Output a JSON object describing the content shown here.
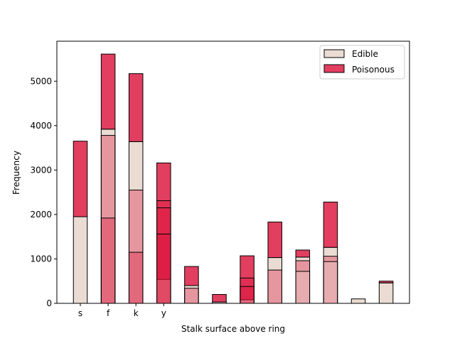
{
  "chart_data": {
    "type": "bar",
    "stacked": true,
    "xlabel": "Stalk surface above ring",
    "ylabel": "Frequency",
    "ylim": [
      0,
      5900
    ],
    "yticks": [
      0,
      1000,
      2000,
      3000,
      4000,
      5000
    ],
    "categories": [
      "s",
      "f",
      "k",
      "y",
      "",
      "",
      "",
      "",
      "",
      "",
      "",
      ""
    ],
    "tick_labels": [
      "s",
      "f",
      "k",
      "y"
    ],
    "legend": {
      "placement": "top-right",
      "entries": [
        "Edible",
        "Poisonous"
      ]
    },
    "colors": {
      "Edible": "#e8d8ce",
      "Poisonous": "#dc143c",
      "Edible_alpha": 0.9,
      "Poisonous_alpha": 0.82
    },
    "series": [
      {
        "name": "Edible",
        "values": [
          1950,
          3920,
          3640,
          540,
          400,
          30,
          80,
          1030,
          1040,
          1260,
          100,
          460
        ]
      },
      {
        "name": "Poisonous",
        "values": [
          1700,
          1690,
          1530,
          2620,
          430,
          170,
          990,
          800,
          160,
          1020,
          0,
          40
        ]
      }
    ],
    "overlay_bars": [
      {
        "category": 1,
        "base": 0,
        "top": 3780,
        "series": "Poisonous"
      },
      {
        "category": 1,
        "base": 0,
        "top": 1920,
        "series": "Poisonous"
      },
      {
        "category": 2,
        "base": 0,
        "top": 2550,
        "series": "Poisonous"
      },
      {
        "category": 2,
        "base": 0,
        "top": 1150,
        "series": "Poisonous"
      },
      {
        "category": 3,
        "base": 0,
        "top": 2310,
        "series": "Poisonous"
      },
      {
        "category": 3,
        "base": 0,
        "top": 2150,
        "series": "Poisonous"
      },
      {
        "category": 3,
        "base": 0,
        "top": 1560,
        "series": "Poisonous"
      },
      {
        "category": 4,
        "base": 0,
        "top": 340,
        "series": "Poisonous"
      },
      {
        "category": 6,
        "base": 0,
        "top": 570,
        "series": "Poisonous"
      },
      {
        "category": 6,
        "base": 0,
        "top": 380,
        "series": "Poisonous"
      },
      {
        "category": 7,
        "base": 0,
        "top": 750,
        "series": "Poisonous"
      },
      {
        "category": 8,
        "base": 0,
        "top": 960,
        "series": "Poisonous"
      },
      {
        "category": 8,
        "base": 0,
        "top": 720,
        "series": "Edible"
      },
      {
        "category": 9,
        "base": 0,
        "top": 1060,
        "series": "Poisonous"
      },
      {
        "category": 9,
        "base": 0,
        "top": 940,
        "series": "Edible"
      }
    ]
  }
}
